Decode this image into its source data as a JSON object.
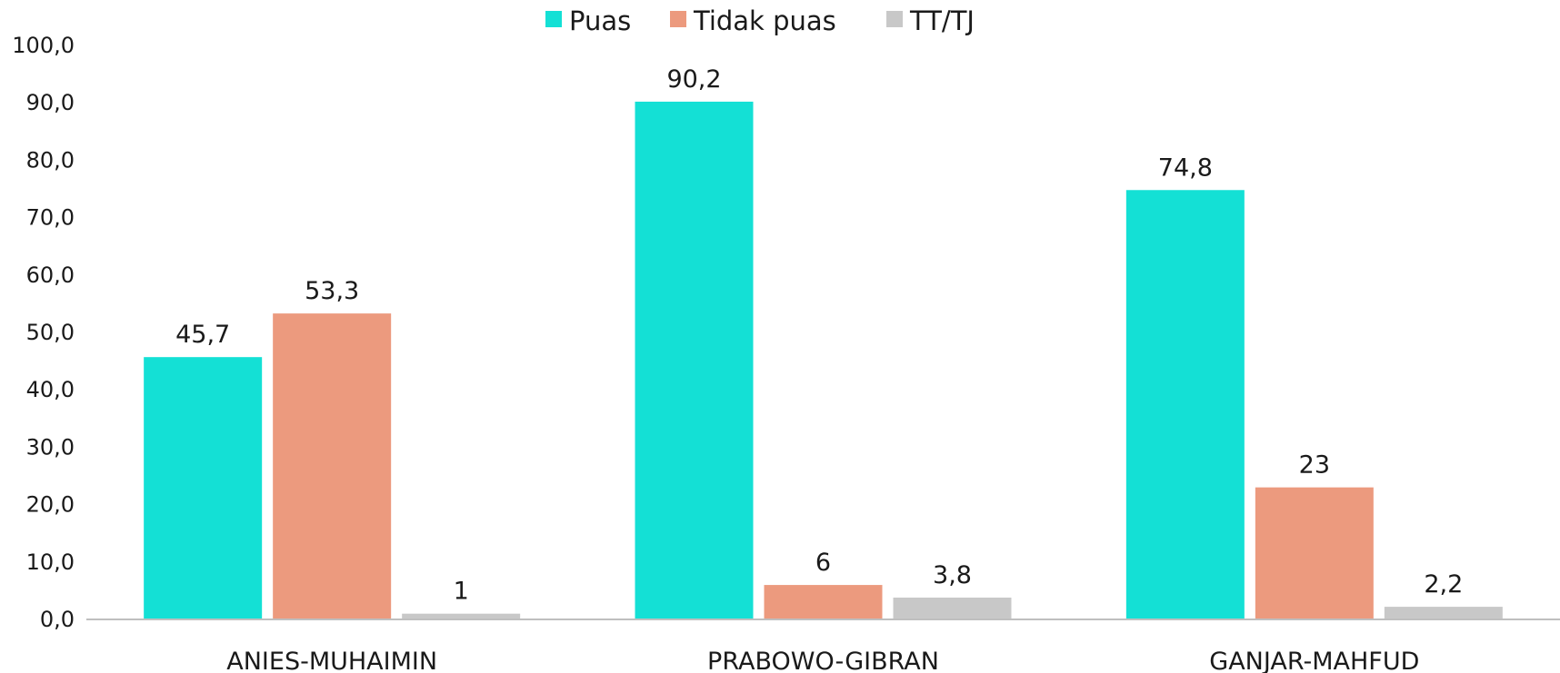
{
  "chart_data": {
    "type": "bar",
    "categories": [
      "ANIES-MUHAIMIN",
      "PRABOWO-GIBRAN",
      "GANJAR-MAHFUD"
    ],
    "series": [
      {
        "name": "Puas",
        "color": "#14E0D5",
        "values": [
          45.7,
          90.2,
          74.8
        ],
        "labels": [
          "45,7",
          "90,2",
          "74,8"
        ]
      },
      {
        "name": "Tidak puas",
        "color": "#EC9A7E",
        "values": [
          53.3,
          6,
          23
        ],
        "labels": [
          "53,3",
          "6",
          "23"
        ]
      },
      {
        "name": "TT/TJ",
        "color": "#C8C8C8",
        "values": [
          1,
          3.8,
          2.2
        ],
        "labels": [
          "1",
          "3,8",
          "2,2"
        ]
      }
    ],
    "yticks": [
      "0,0",
      "10,0",
      "20,0",
      "30,0",
      "40,0",
      "50,0",
      "60,0",
      "70,0",
      "80,0",
      "90,0",
      "100,0"
    ],
    "ylim": [
      0,
      100
    ],
    "grid": false,
    "legend_position": "top-center",
    "axis_color": "#BFBFBF",
    "xlabel": "",
    "ylabel": "",
    "title": ""
  }
}
